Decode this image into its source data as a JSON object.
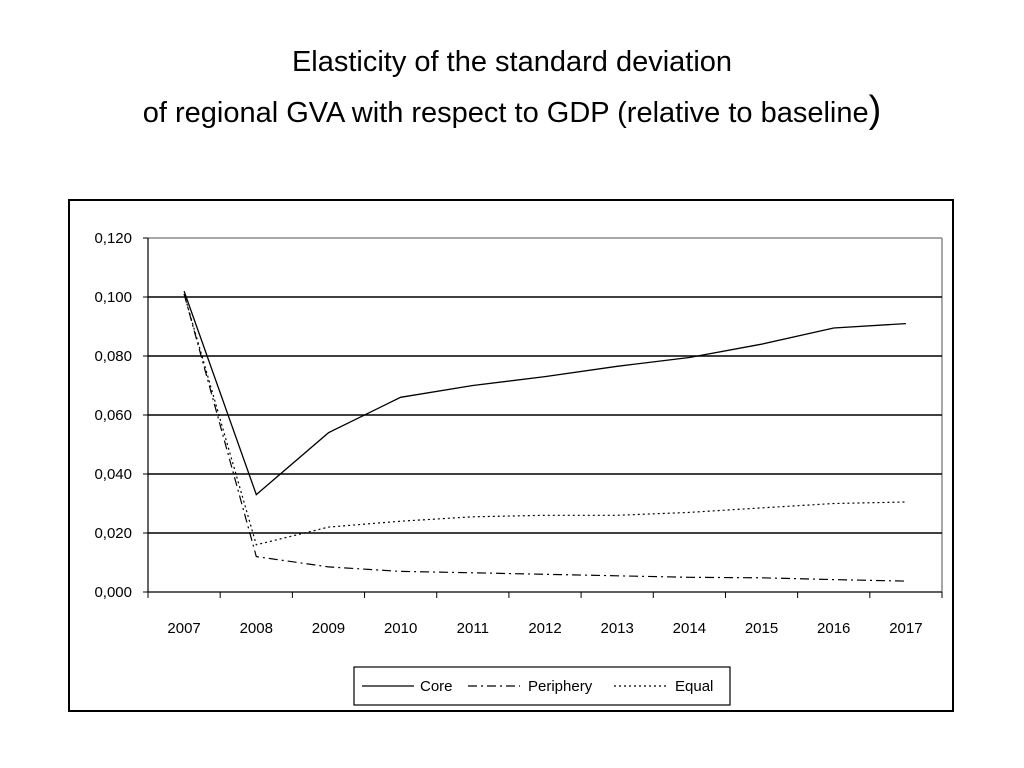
{
  "title": {
    "line1": "Elasticity of the standard deviation",
    "line2": "of regional GVA with respect to GDP (relative to baseline",
    "close_paren": ")"
  },
  "chart_data": {
    "type": "line",
    "title": "Elasticity of the standard deviation of regional GVA with respect to GDP (relative to baseline)",
    "x": [
      "2007",
      "2008",
      "2009",
      "2010",
      "2011",
      "2012",
      "2013",
      "2014",
      "2015",
      "2016",
      "2017"
    ],
    "y_ticks": [
      "0,000",
      "0,020",
      "0,040",
      "0,060",
      "0,080",
      "0,100",
      "0,120"
    ],
    "ylim": [
      0,
      0.12
    ],
    "grid": true,
    "legend_position": "bottom",
    "series": [
      {
        "name": "Core",
        "style": "solid",
        "values": [
          0.102,
          0.033,
          0.054,
          0.066,
          0.07,
          0.073,
          0.0765,
          0.0795,
          0.084,
          0.0895,
          0.091
        ]
      },
      {
        "name": "Periphery",
        "style": "dash-dot",
        "values": [
          0.101,
          0.012,
          0.0085,
          0.007,
          0.0065,
          0.006,
          0.0055,
          0.005,
          0.0048,
          0.0042,
          0.0037
        ]
      },
      {
        "name": "Equal",
        "style": "dotted",
        "values": [
          0.101,
          0.016,
          0.022,
          0.024,
          0.0255,
          0.026,
          0.026,
          0.027,
          0.0285,
          0.03,
          0.0305
        ]
      }
    ]
  }
}
